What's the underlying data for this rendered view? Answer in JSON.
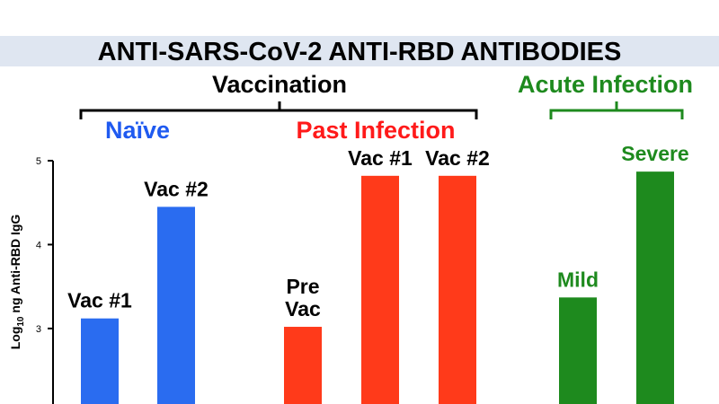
{
  "chart_data": {
    "type": "bar",
    "title": "ANTI-SARS-CoV-2 ANTI-RBD ANTIBODIES",
    "ylabel_prefix": "Log",
    "ylabel_sub": "10",
    "ylabel_suffix": " ng Anti-RBD IgG",
    "yticks": [
      "3",
      "4",
      "5"
    ],
    "ylim": [
      2.1,
      5.0
    ],
    "groups": [
      {
        "label": "Vaccination",
        "color": "#000000"
      },
      {
        "label": "Acute Infection",
        "color": "#1e8a1e"
      }
    ],
    "subgroups": [
      {
        "label": "Naïve",
        "color": "#1f5af0"
      },
      {
        "label": "Past Infection",
        "color": "#ff1a1a"
      }
    ],
    "bars": [
      {
        "label": "Vac #1",
        "value": 3.12,
        "color": "#2a6cf0"
      },
      {
        "label": "Vac #2",
        "value": 4.45,
        "color": "#2a6cf0"
      },
      {
        "label": "Pre\nVac",
        "value": 3.02,
        "color": "#ff3a1a"
      },
      {
        "label": "Vac #1",
        "value": 4.82,
        "color": "#ff3a1a"
      },
      {
        "label": "Vac #2",
        "value": 4.82,
        "color": "#ff3a1a"
      },
      {
        "label": "Mild",
        "value": 3.37,
        "color": "#1e8a1e"
      },
      {
        "label": "Severe",
        "value": 4.87,
        "color": "#1e8a1e"
      }
    ]
  }
}
